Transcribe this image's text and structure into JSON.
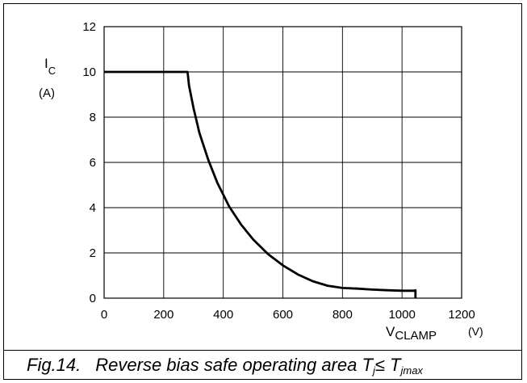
{
  "caption": {
    "figure": "Fig.14.",
    "text": "Reverse bias safe operating area",
    "cond_left": "T",
    "cond_left_sub": "j",
    "cond_op": "≤",
    "cond_right": "T",
    "cond_right_sub": "jmax"
  },
  "chart_data": {
    "type": "line",
    "title": "",
    "ylabel": "I",
    "ylabel_sub": "C",
    "yunit": "(A)",
    "xlabel": "V",
    "xlabel_sub": "CLAMP",
    "xunit": "(V)",
    "xlim": [
      0,
      1200
    ],
    "ylim": [
      0,
      12
    ],
    "xticks": [
      0,
      200,
      400,
      600,
      800,
      1000,
      1200
    ],
    "yticks": [
      0,
      2,
      4,
      6,
      8,
      10,
      12
    ],
    "grid": true,
    "series": [
      {
        "color": "#000000",
        "x": [
          0,
          280,
          285,
          300,
          320,
          350,
          380,
          420,
          460,
          500,
          550,
          600,
          650,
          700,
          750,
          800,
          850,
          900,
          950,
          1000,
          1040,
          1045,
          1045
        ],
        "y": [
          10,
          10,
          9.4,
          8.4,
          7.3,
          6.1,
          5.1,
          4.05,
          3.25,
          2.6,
          1.95,
          1.45,
          1.05,
          0.75,
          0.55,
          0.45,
          0.42,
          0.38,
          0.35,
          0.33,
          0.33,
          0.35,
          0
        ]
      }
    ]
  }
}
